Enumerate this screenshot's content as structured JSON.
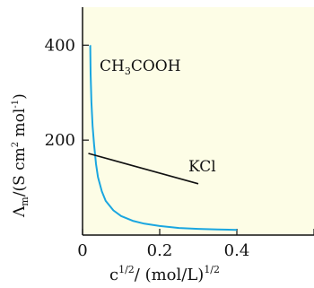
{
  "chart_data": {
    "type": "line",
    "xlabel": "c",
    "xlabel_sup": "1/2",
    "xlabel_mid": "/ (mol/L)",
    "xlabel_sup2": "1/2",
    "ylabel_main": "Λ",
    "ylabel_sub": "m",
    "ylabel_rest": "/(S cm",
    "ylabel_sup1": "2",
    "ylabel_mid": " mol",
    "ylabel_sup2": "-1",
    "ylabel_end": ")",
    "xlim": [
      0,
      0.6
    ],
    "ylim": [
      0,
      480
    ],
    "x_ticks": [
      0,
      0.2,
      0.4
    ],
    "x_tick_labels": [
      "0",
      "0.2",
      "0.4"
    ],
    "y_ticks": [
      200,
      400
    ],
    "y_tick_labels": [
      "200",
      "400"
    ],
    "plot_background": "#fdfde6",
    "series": [
      {
        "name": "CH3COOH",
        "label_parts": [
          "CH",
          "3",
          "COOH"
        ],
        "color": "#1aa6e0",
        "x": [
          0.02,
          0.021,
          0.023,
          0.026,
          0.03,
          0.035,
          0.04,
          0.05,
          0.06,
          0.08,
          0.1,
          0.13,
          0.16,
          0.2,
          0.25,
          0.3,
          0.35,
          0.4
        ],
        "y": [
          400,
          340,
          280,
          230,
          190,
          150,
          122,
          92,
          72,
          52,
          40,
          30,
          24,
          19,
          15,
          13,
          12,
          11
        ]
      },
      {
        "name": "KCl",
        "label_parts": [
          "KCl"
        ],
        "color": "#111111",
        "x": [
          0.015,
          0.3
        ],
        "y": [
          172,
          108
        ]
      }
    ]
  }
}
